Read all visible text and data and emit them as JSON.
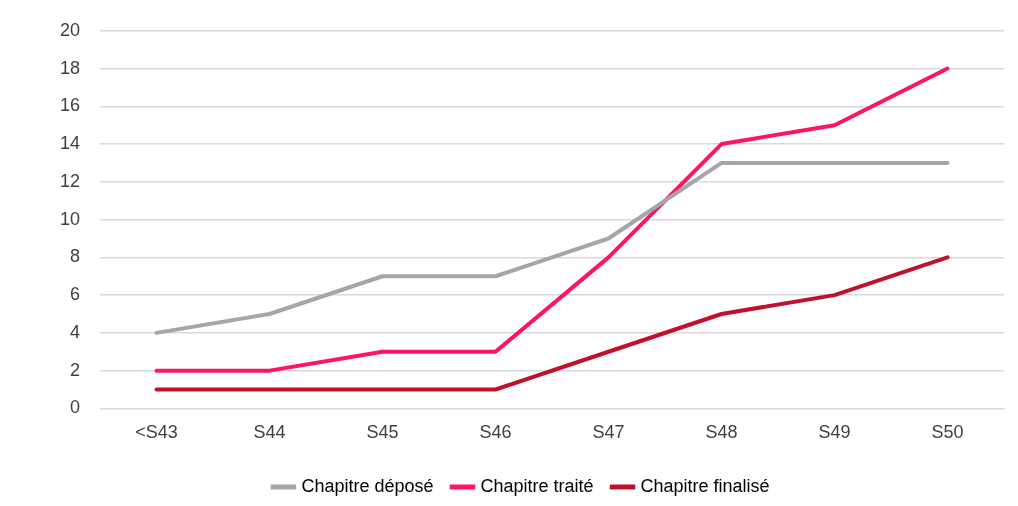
{
  "chart_data": {
    "type": "line",
    "categories": [
      "<S43",
      "S44",
      "S45",
      "S46",
      "S47",
      "S48",
      "S49",
      "S50"
    ],
    "series": [
      {
        "name": "Chapitre déposé",
        "color": "#a6a6a6",
        "values": [
          4,
          5,
          7,
          7,
          9,
          13,
          13,
          13
        ]
      },
      {
        "name": "Chapitre traité",
        "color": "#ff1464",
        "values": [
          2,
          2,
          3,
          3,
          8,
          14,
          15,
          18
        ]
      },
      {
        "name": "Chapitre finalisé",
        "color": "#c0102c",
        "values": [
          1,
          1,
          1,
          1,
          3,
          5,
          6,
          8
        ]
      }
    ],
    "ylim": [
      0,
      20
    ],
    "yticks": [
      0,
      2,
      4,
      6,
      8,
      10,
      12,
      14,
      16,
      18,
      20
    ],
    "grid": "y",
    "legend": "bottom",
    "marker": "none",
    "line_style": "solid"
  }
}
